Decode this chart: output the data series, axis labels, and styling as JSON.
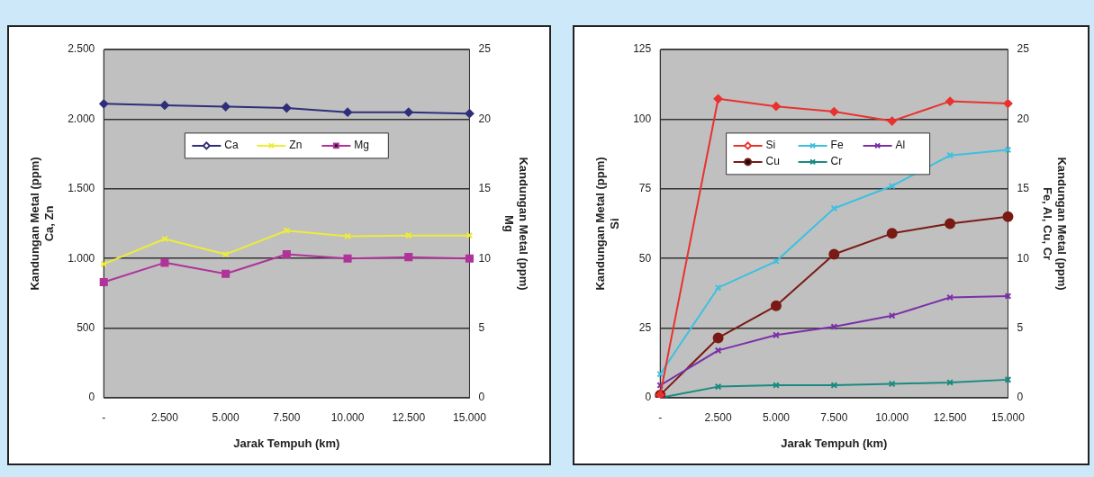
{
  "chart_data": [
    {
      "type": "line",
      "xlabel": "Jarak Tempuh (km)",
      "ylabel": "Kandungan Metal (ppm)\nCa, Zn",
      "y2label": "Kandungan Metal (ppm)\nMg",
      "categories": [
        "-",
        "2.500",
        "5.000",
        "7.500",
        "10.000",
        "12.500",
        "15.000"
      ],
      "series": [
        {
          "name": "Ca",
          "color": "#2e2e7a",
          "marker": "diamond",
          "values": [
            2110,
            2100,
            2090,
            2080,
            2050,
            2050,
            2040
          ]
        },
        {
          "name": "Zn",
          "color": "#ecec3a",
          "marker": "cross",
          "values": [
            960,
            1140,
            1030,
            1200,
            1160,
            1165,
            1165
          ]
        },
        {
          "name": "Mg",
          "color": "#b0339a",
          "marker": "square",
          "axis": "y2",
          "values": [
            8.3,
            9.7,
            8.9,
            10.3,
            10.0,
            10.1,
            10.0
          ]
        }
      ],
      "ylim": [
        0,
        2500
      ],
      "yticks": [
        {
          "value": 0,
          "label": "0"
        },
        {
          "value": 500,
          "label": "500"
        },
        {
          "value": 1000,
          "label": "1.000"
        },
        {
          "value": 1500,
          "label": "1.500"
        },
        {
          "value": 2000,
          "label": "2.000"
        },
        {
          "value": 2500,
          "label": "2.500"
        }
      ],
      "y2lim": [
        0,
        25
      ],
      "y2ticks": [
        0,
        5,
        10,
        15,
        20,
        25
      ],
      "grid": "y",
      "legend": "top"
    },
    {
      "type": "line",
      "xlabel": "Jarak Tempuh (km)",
      "ylabel": "Kandungan Metal (ppm)\nSi",
      "y2label": "Kandungan Metal (ppm)\nFe, Al, Cu, Cr",
      "categories": [
        "-",
        "2.500",
        "5.000",
        "7.500",
        "10.000",
        "12.500",
        "15.000"
      ],
      "series": [
        {
          "name": "Si",
          "color": "#e8322e",
          "marker": "diamond",
          "values": [
            1,
            107.3,
            104.6,
            102.7,
            99.3,
            106.4,
            105.6
          ]
        },
        {
          "name": "Fe",
          "color": "#3cc0e0",
          "marker": "cross",
          "axis": "y2",
          "values": [
            1.7,
            7.9,
            9.8,
            13.6,
            15.2,
            17.4,
            17.8
          ]
        },
        {
          "name": "Al",
          "color": "#7a30a8",
          "marker": "cross",
          "axis": "y2",
          "values": [
            0.9,
            3.4,
            4.5,
            5.1,
            5.9,
            7.2,
            7.3
          ]
        },
        {
          "name": "Cu",
          "color": "#7a1a14",
          "marker": "circle",
          "axis": "y2",
          "values": [
            0.2,
            4.3,
            6.6,
            10.3,
            11.8,
            12.5,
            13.0
          ]
        },
        {
          "name": "Cr",
          "color": "#1a8a80",
          "marker": "cross",
          "axis": "y2",
          "values": [
            0,
            0.8,
            0.9,
            0.9,
            1.0,
            1.1,
            1.3
          ]
        }
      ],
      "ylim": [
        0,
        125
      ],
      "yticks": [
        0,
        25,
        50,
        75,
        100,
        125
      ],
      "y2lim": [
        0,
        25
      ],
      "y2ticks": [
        0,
        5,
        10,
        15,
        20,
        25
      ],
      "grid": "y",
      "legend": "top left"
    }
  ]
}
